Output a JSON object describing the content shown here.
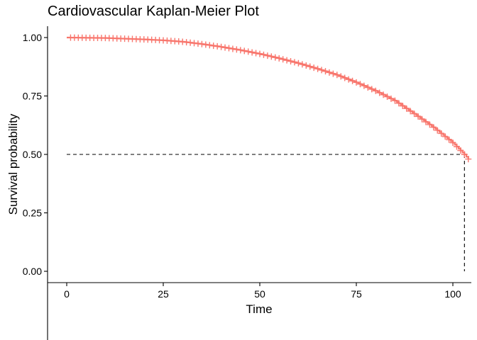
{
  "chart_data": {
    "type": "line",
    "title": "Cardiovascular Kaplan-Meier Plot",
    "xlabel": "Time",
    "ylabel": "Survival probability",
    "xlim": [
      0,
      104
    ],
    "ylim": [
      0,
      1
    ],
    "x_ticks": [
      0,
      25,
      50,
      75,
      100
    ],
    "x_tick_labels": [
      "0",
      "25",
      "50",
      "75",
      "100"
    ],
    "y_ticks": [
      0,
      0.25,
      0.5,
      0.75,
      1
    ],
    "y_tick_labels": [
      "0.00",
      "0.25",
      "0.50",
      "0.75",
      "1.00"
    ],
    "grid": false,
    "legend": "none",
    "curve_color": "#F8766D",
    "censor_symbol": "+",
    "median_survival": 103,
    "median_line_y": 0.5,
    "series": [
      {
        "x": [
          0,
          10,
          20,
          25,
          30,
          35,
          40,
          45,
          50,
          55,
          60,
          65,
          70,
          75,
          80,
          85,
          90,
          95,
          100,
          103,
          104
        ],
        "y": [
          1.0,
          0.998,
          0.992,
          0.988,
          0.982,
          0.972,
          0.96,
          0.946,
          0.93,
          0.911,
          0.89,
          0.866,
          0.84,
          0.808,
          0.772,
          0.73,
          0.674,
          0.616,
          0.55,
          0.5,
          0.48
        ]
      }
    ],
    "censor_x": [
      1,
      2,
      3,
      4,
      5,
      6,
      7,
      8,
      9,
      10,
      11,
      12,
      13,
      14,
      15,
      16,
      17,
      18,
      19,
      20,
      21,
      22,
      23,
      24,
      25,
      26,
      27,
      28,
      29,
      30,
      31,
      32,
      33,
      34,
      35,
      36,
      37,
      38,
      39,
      40,
      41,
      42,
      43,
      44,
      45,
      46,
      47,
      48,
      49,
      50,
      51,
      52,
      53,
      54,
      55,
      56,
      57,
      58,
      59,
      60,
      61,
      62,
      63,
      64,
      65,
      66,
      67,
      68,
      69,
      70,
      71,
      72,
      73,
      74,
      75,
      76,
      77,
      78,
      79,
      80,
      81,
      82,
      83,
      84,
      85,
      86,
      87,
      88,
      89,
      90,
      91,
      92,
      93,
      94,
      95,
      96,
      97,
      98,
      99,
      100,
      101,
      102,
      103,
      104
    ]
  }
}
